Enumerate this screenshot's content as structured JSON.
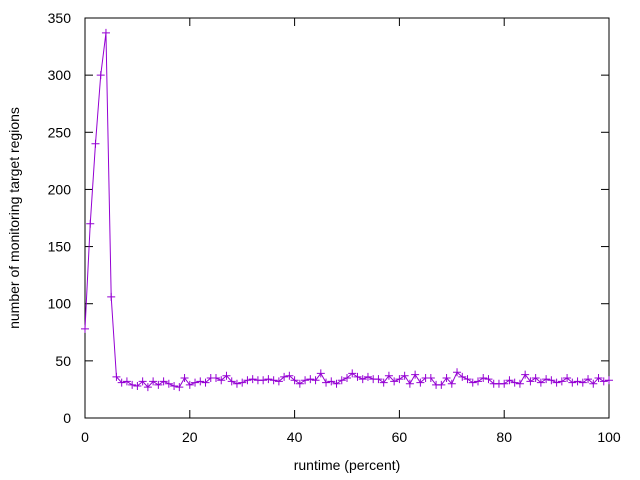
{
  "chart_data": {
    "type": "line",
    "xlabel": "runtime (percent)",
    "ylabel": "number of monitoring target regions",
    "x": [
      0,
      1,
      2,
      3,
      4,
      5,
      6,
      7,
      8,
      9,
      10,
      11,
      12,
      13,
      14,
      15,
      16,
      17,
      18,
      19,
      20,
      21,
      22,
      23,
      24,
      25,
      26,
      27,
      28,
      29,
      30,
      31,
      32,
      33,
      34,
      35,
      36,
      37,
      38,
      39,
      40,
      41,
      42,
      43,
      44,
      45,
      46,
      47,
      48,
      49,
      50,
      51,
      52,
      53,
      54,
      55,
      56,
      57,
      58,
      59,
      60,
      61,
      62,
      63,
      64,
      65,
      66,
      67,
      68,
      69,
      70,
      71,
      72,
      73,
      74,
      75,
      76,
      77,
      78,
      79,
      80,
      81,
      82,
      83,
      84,
      85,
      86,
      87,
      88,
      89,
      90,
      91,
      92,
      93,
      94,
      95,
      96,
      97,
      98,
      99,
      100
    ],
    "series": [
      {
        "color": "#9400d3",
        "values": [
          78,
          170,
          240,
          300,
          337,
          106,
          36,
          31,
          32,
          29,
          28,
          32,
          27,
          32,
          29,
          32,
          30,
          28,
          27,
          35,
          29,
          31,
          32,
          31,
          35,
          35,
          33,
          37,
          32,
          30,
          31,
          33,
          34,
          33,
          33,
          34,
          33,
          32,
          36,
          37,
          33,
          30,
          33,
          34,
          33,
          39,
          31,
          32,
          30,
          33,
          35,
          39,
          36,
          34,
          36,
          34,
          34,
          31,
          37,
          32,
          34,
          37,
          30,
          38,
          31,
          35,
          35,
          29,
          29,
          35,
          30,
          40,
          36,
          34,
          31,
          32,
          35,
          34,
          30,
          30,
          30,
          33,
          31,
          30,
          38,
          32,
          35,
          31,
          34,
          33,
          31,
          32,
          35,
          31,
          32,
          31,
          34,
          30,
          35,
          32,
          33
        ]
      }
    ],
    "xlim": [
      0,
      100
    ],
    "xticks": [
      0,
      20,
      40,
      60,
      80,
      100
    ],
    "ylim": [
      0,
      350
    ],
    "yticks": [
      0,
      50,
      100,
      150,
      200,
      250,
      300,
      350
    ]
  }
}
